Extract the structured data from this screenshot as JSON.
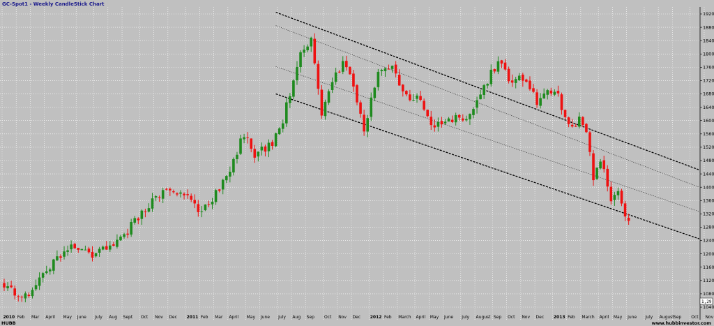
{
  "chart_data": {
    "type": "candlestick",
    "title": "GC-Spot1 - Weekly CandleStick Chart",
    "source": "HUBB",
    "website": "www.hubbinvestor.com",
    "last_value": "1,29",
    "y_axis": {
      "range": [
        1016,
        1936
      ],
      "ticks": [
        1040,
        1080,
        1120,
        1160,
        1200,
        1240,
        1280,
        1320,
        1360,
        1400,
        1440,
        1480,
        1520,
        1560,
        1600,
        1640,
        1680,
        1720,
        1760,
        1800,
        1840,
        1880,
        1920
      ]
    },
    "x_axis": {
      "weeks": 180,
      "labels": [
        {
          "text": "2010",
          "week": 0,
          "year": true
        },
        {
          "text": "Feb",
          "week": 4
        },
        {
          "text": "Mar",
          "week": 8
        },
        {
          "text": "April",
          "week": 12
        },
        {
          "text": "May",
          "week": 17
        },
        {
          "text": "June",
          "week": 21
        },
        {
          "text": "July",
          "week": 26
        },
        {
          "text": "Aug",
          "week": 30
        },
        {
          "text": "Sept",
          "week": 34
        },
        {
          "text": "Oct",
          "week": 39
        },
        {
          "text": "Nov",
          "week": 43
        },
        {
          "text": "Dec",
          "week": 47
        },
        {
          "text": "2011",
          "week": 52,
          "year": true
        },
        {
          "text": "Feb",
          "week": 56
        },
        {
          "text": "Mar",
          "week": 60
        },
        {
          "text": "April",
          "week": 64
        },
        {
          "text": "May",
          "week": 69
        },
        {
          "text": "June",
          "week": 73
        },
        {
          "text": "July",
          "week": 78
        },
        {
          "text": "Aug",
          "week": 82
        },
        {
          "text": "Sep",
          "week": 86
        },
        {
          "text": "Oct",
          "week": 91
        },
        {
          "text": "Nov",
          "week": 95
        },
        {
          "text": "Dec",
          "week": 99
        },
        {
          "text": "2012",
          "week": 104,
          "year": true
        },
        {
          "text": "Feb",
          "week": 108
        },
        {
          "text": "March",
          "week": 112
        },
        {
          "text": "April",
          "week": 117
        },
        {
          "text": "May",
          "week": 121
        },
        {
          "text": "June",
          "week": 125
        },
        {
          "text": "July",
          "week": 130
        },
        {
          "text": "August",
          "week": 134
        },
        {
          "text": "Sep",
          "week": 139
        },
        {
          "text": "Oct",
          "week": 143
        },
        {
          "text": "Nov",
          "week": 147
        },
        {
          "text": "Dec",
          "week": 151
        },
        {
          "text": "2013",
          "week": 156,
          "year": true
        },
        {
          "text": "Feb",
          "week": 160
        },
        {
          "text": "March",
          "week": 164
        },
        {
          "text": "April",
          "week": 169
        },
        {
          "text": "May",
          "week": 173
        },
        {
          "text": "June",
          "week": 177
        },
        {
          "text": "July",
          "week": 182
        },
        {
          "text": "August",
          "week": 186
        },
        {
          "text": "Sep",
          "week": 190
        },
        {
          "text": "Oct",
          "week": 195
        },
        {
          "text": "Nov",
          "week": 199
        }
      ]
    },
    "channel_lines": [
      {
        "style": "dashed-bold",
        "from": [
          77,
          1925
        ],
        "to": [
          197,
          1452
        ]
      },
      {
        "style": "dotted",
        "from": [
          77,
          1885
        ],
        "to": [
          197,
          1400
        ]
      },
      {
        "style": "dotted",
        "from": [
          77,
          1762
        ],
        "to": [
          197,
          1327
        ]
      },
      {
        "style": "dashed-bold",
        "from": [
          77,
          1680
        ],
        "to": [
          197,
          1245
        ]
      }
    ],
    "colors": {
      "up": "#1e8a1e",
      "down": "#ee1111",
      "background": "#c0c0c0",
      "grid": "#ffffff",
      "title": "#1a1a8c"
    },
    "key_points": [
      {
        "week": 0,
        "close": 1110
      },
      {
        "week": 5,
        "close": 1060
      },
      {
        "week": 12,
        "close": 1150
      },
      {
        "week": 19,
        "close": 1230
      },
      {
        "week": 25,
        "close": 1200
      },
      {
        "week": 32,
        "close": 1230
      },
      {
        "week": 41,
        "close": 1350
      },
      {
        "week": 46,
        "close": 1390
      },
      {
        "week": 53,
        "close": 1370
      },
      {
        "week": 56,
        "close": 1320
      },
      {
        "week": 63,
        "close": 1430
      },
      {
        "week": 68,
        "close": 1560
      },
      {
        "week": 71,
        "close": 1500
      },
      {
        "week": 76,
        "close": 1530
      },
      {
        "week": 79,
        "close": 1600
      },
      {
        "week": 84,
        "close": 1810
      },
      {
        "week": 87,
        "close": 1840
      },
      {
        "week": 90,
        "close": 1620
      },
      {
        "week": 92,
        "close": 1700
      },
      {
        "week": 96,
        "close": 1770
      },
      {
        "week": 99,
        "close": 1710
      },
      {
        "week": 102,
        "close": 1575
      },
      {
        "week": 106,
        "close": 1740
      },
      {
        "week": 110,
        "close": 1760
      },
      {
        "week": 114,
        "close": 1670
      },
      {
        "week": 118,
        "close": 1660
      },
      {
        "week": 121,
        "close": 1580
      },
      {
        "week": 127,
        "close": 1600
      },
      {
        "week": 132,
        "close": 1620
      },
      {
        "week": 136,
        "close": 1700
      },
      {
        "week": 140,
        "close": 1780
      },
      {
        "week": 144,
        "close": 1710
      },
      {
        "week": 147,
        "close": 1730
      },
      {
        "week": 151,
        "close": 1660
      },
      {
        "week": 154,
        "close": 1690
      },
      {
        "week": 157,
        "close": 1670
      },
      {
        "week": 160,
        "close": 1580
      },
      {
        "week": 163,
        "close": 1600
      },
      {
        "week": 165,
        "close": 1570
      },
      {
        "week": 167,
        "close": 1420
      },
      {
        "week": 169,
        "close": 1480
      },
      {
        "week": 172,
        "close": 1370
      },
      {
        "week": 174,
        "close": 1390
      },
      {
        "week": 176,
        "close": 1310
      },
      {
        "week": 177,
        "close": 1290
      }
    ]
  }
}
